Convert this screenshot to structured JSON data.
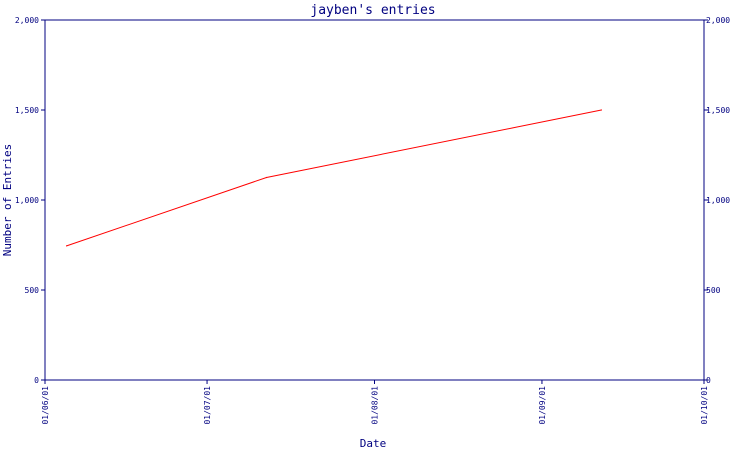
{
  "chart_data": {
    "type": "line",
    "title": "jayben's entries",
    "xlabel": "Date",
    "ylabel": "Number of Entries",
    "x_tick_labels": [
      "01/06/01",
      "01/07/01",
      "01/08/01",
      "01/09/01",
      "01/10/01"
    ],
    "x_ticks": [
      "2001-06-01",
      "2001-07-01",
      "2001-08-01",
      "2001-09-01",
      "2001-10-01"
    ],
    "xlim": [
      "2001-06-01",
      "2001-10-01"
    ],
    "ylim": [
      0,
      2000
    ],
    "y_ticks": [
      0,
      500,
      1000,
      1500,
      2000
    ],
    "y_tick_labels": [
      "0",
      "500",
      "1,000",
      "1,500",
      "2,000"
    ],
    "right_axis": true,
    "grid": false,
    "series": [
      {
        "color": "#ff0000",
        "x": [
          "2001-06-05",
          "2001-07-12",
          "2001-09-12"
        ],
        "values": [
          745,
          1125,
          1500
        ]
      }
    ]
  }
}
